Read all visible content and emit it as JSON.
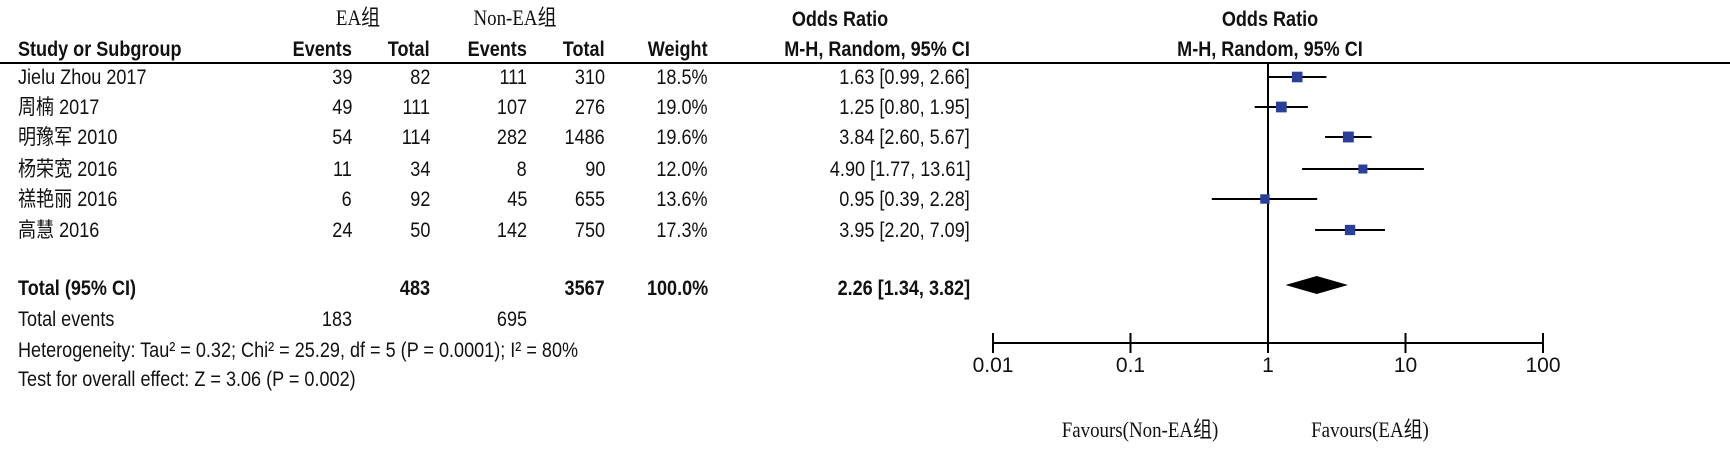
{
  "header": {
    "group_ea": "EA组",
    "group_non_ea": "Non-EA组",
    "odds_ratio_title": "Odds Ratio",
    "columns": [
      "Study or Subgroup",
      "Events",
      "Total",
      "Events",
      "Total",
      "Weight",
      "M-H, Random, 95% CI"
    ],
    "plot_title": "Odds Ratio",
    "plot_subtitle": "M-H, Random, 95% CI"
  },
  "rows": [
    {
      "study": "Jielu Zhou 2017",
      "ea_events": "39",
      "ea_total": "82",
      "non_events": "111",
      "non_total": "310",
      "weight": "18.5%",
      "ci_text": "1.63 [0.99, 2.66]"
    },
    {
      "study": "周楠 2017",
      "ea_events": "49",
      "ea_total": "111",
      "non_events": "107",
      "non_total": "276",
      "weight": "19.0%",
      "ci_text": "1.25 [0.80, 1.95]"
    },
    {
      "study": "明豫军 2010",
      "ea_events": "54",
      "ea_total": "114",
      "non_events": "282",
      "non_total": "1486",
      "weight": "19.6%",
      "ci_text": "3.84 [2.60, 5.67]"
    },
    {
      "study": "杨荣宽 2016",
      "ea_events": "11",
      "ea_total": "34",
      "non_events": "8",
      "non_total": "90",
      "weight": "12.0%",
      "ci_text": "4.90 [1.77, 13.61]"
    },
    {
      "study": "禚艳丽 2016",
      "ea_events": "6",
      "ea_total": "92",
      "non_events": "45",
      "non_total": "655",
      "weight": "13.6%",
      "ci_text": "0.95 [0.39, 2.28]"
    },
    {
      "study": "高慧 2016",
      "ea_events": "24",
      "ea_total": "50",
      "non_events": "142",
      "non_total": "750",
      "weight": "17.3%",
      "ci_text": "3.95 [2.20, 7.09]"
    }
  ],
  "total": {
    "label": "Total (95% CI)",
    "ea_total": "483",
    "non_total": "3567",
    "weight": "100.0%",
    "ci_text": "2.26 [1.34, 3.82]",
    "events_label": "Total events",
    "ea_events": "183",
    "non_events": "695",
    "heterogeneity": "Heterogeneity: Tau² = 0.32; Chi² = 25.29, df = 5 (P = 0.0001); I² = 80%",
    "overall": "Test for overall effect: Z = 3.06 (P = 0.002)"
  },
  "chart_data": {
    "type": "forest",
    "title": "Odds Ratio",
    "subtitle": "M-H, Random, 95% CI",
    "x_scale": "log",
    "xlim": [
      0.01,
      100
    ],
    "x_ticks": [
      "0.01",
      "0.1",
      "1",
      "10",
      "100"
    ],
    "x_tick_values": [
      0.01,
      0.1,
      1,
      10,
      100
    ],
    "favours_left": "Favours(Non-EA组)",
    "favours_right": "Favours(EA组)",
    "studies": [
      {
        "name": "Jielu Zhou 2017",
        "or": 1.63,
        "lo": 0.99,
        "hi": 2.66,
        "weight": 18.5
      },
      {
        "name": "周楠 2017",
        "or": 1.25,
        "lo": 0.8,
        "hi": 1.95,
        "weight": 19.0
      },
      {
        "name": "明豫军 2010",
        "or": 3.84,
        "lo": 2.6,
        "hi": 5.67,
        "weight": 19.6
      },
      {
        "name": "杨荣宽 2016",
        "or": 4.9,
        "lo": 1.77,
        "hi": 13.61,
        "weight": 12.0
      },
      {
        "name": "禚艳丽 2016",
        "or": 0.95,
        "lo": 0.39,
        "hi": 2.28,
        "weight": 13.6
      },
      {
        "name": "高慧 2016",
        "or": 3.95,
        "lo": 2.2,
        "hi": 7.09,
        "weight": 17.3
      }
    ],
    "pooled": {
      "or": 2.26,
      "lo": 1.34,
      "hi": 3.82
    },
    "colors": {
      "study_marker": "#2a3f9a",
      "pooled": "#000000",
      "lines": "#000000"
    }
  }
}
